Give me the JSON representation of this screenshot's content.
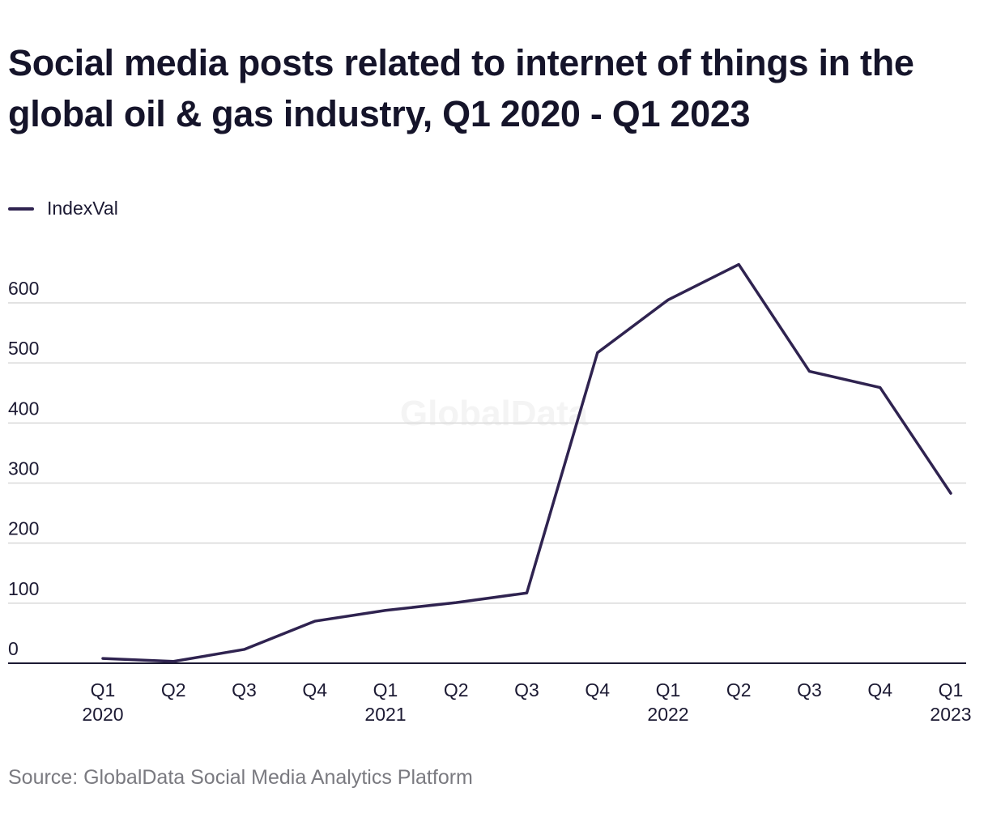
{
  "title": "Social media posts related to internet of things in the global oil & gas industry, Q1 2020 - Q1 2023",
  "source": "Source: GlobalData Social Media Analytics Platform",
  "watermark": "GlobalData",
  "colors": {
    "line": "#2f2350",
    "grid": "#d9d9d9",
    "axis": "#1c1a33",
    "text": "#1c1a33",
    "watermark": "#f4f4f4"
  },
  "chart_data": {
    "type": "line",
    "title": "Social media posts related to internet of things in the global oil & gas industry, Q1 2020 - Q1 2023",
    "xlabel": "",
    "ylabel": "",
    "legend": "top-left",
    "grid": true,
    "ylim": [
      0,
      660
    ],
    "yticks": [
      0,
      100,
      200,
      300,
      400,
      500,
      600
    ],
    "x": [
      "Q1 2020",
      "Q2 2020",
      "Q3 2020",
      "Q4 2020",
      "Q1 2021",
      "Q2 2021",
      "Q3 2021",
      "Q4 2021",
      "Q1 2022",
      "Q2 2022",
      "Q3 2022",
      "Q4 2022",
      "Q1 2023"
    ],
    "tick_labels": [
      [
        "Q1",
        "2020"
      ],
      [
        "Q2",
        ""
      ],
      [
        "Q3",
        ""
      ],
      [
        "Q4",
        ""
      ],
      [
        "Q1",
        "2021"
      ],
      [
        "Q2",
        ""
      ],
      [
        "Q3",
        ""
      ],
      [
        "Q4",
        ""
      ],
      [
        "Q1",
        "2022"
      ],
      [
        "Q2",
        ""
      ],
      [
        "Q3",
        ""
      ],
      [
        "Q4",
        ""
      ],
      [
        "Q1",
        "2023"
      ]
    ],
    "series": [
      {
        "name": "IndexVal",
        "values": [
          8,
          3,
          23,
          70,
          88,
          101,
          117,
          517,
          605,
          664,
          486,
          459,
          283
        ]
      }
    ]
  }
}
